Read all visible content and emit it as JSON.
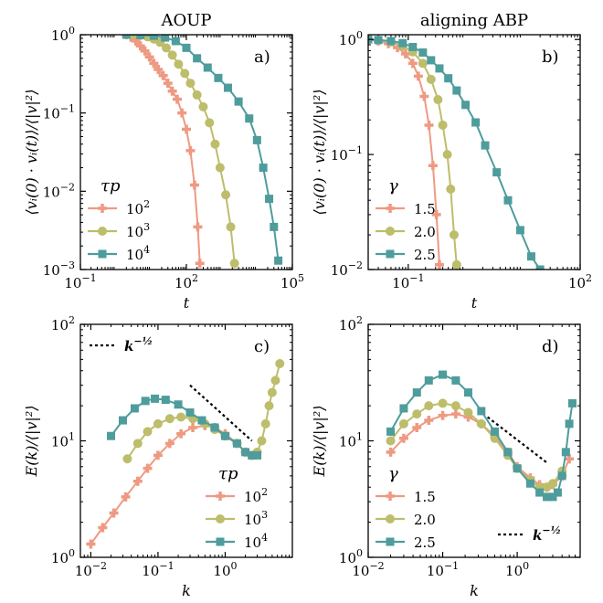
{
  "colors": {
    "s1": "#EE9A82",
    "s2": "#BDBD6B",
    "s3": "#4E9C9C"
  },
  "chart_data": [
    {
      "id": "a",
      "type": "line",
      "title": "AOUP",
      "panel_label": "a)",
      "xlabel": "t",
      "ylabel": "⟨vᵢ(0) · vᵢ(t)⟩/⟨|v|²⟩",
      "xscale": "log",
      "yscale": "log",
      "xlim": [
        0.1,
        100000
      ],
      "ylim": [
        0.001,
        1
      ],
      "xticks": [
        {
          "v": 0.1,
          "t": "10",
          "e": "−1"
        },
        {
          "v": 100,
          "t": "10",
          "e": "2"
        },
        {
          "v": 100000,
          "t": "10",
          "e": "5"
        }
      ],
      "yticks": [
        {
          "v": 0.001,
          "t": "10",
          "e": "−3"
        },
        {
          "v": 0.01,
          "t": "10",
          "e": "−2"
        },
        {
          "v": 0.1,
          "t": "10",
          "e": "−1"
        },
        {
          "v": 1,
          "t": "10",
          "e": "0"
        }
      ],
      "legend": {
        "title": "τp",
        "position": "lower-left"
      },
      "series": [
        {
          "name": "10²",
          "name_base": "10",
          "name_exp": "2",
          "marker": "plus",
          "color_key": "s1",
          "points": [
            [
              2,
              1.0
            ],
            [
              2.7,
              0.93
            ],
            [
              3.7,
              0.83
            ],
            [
              5,
              0.72
            ],
            [
              6.7,
              0.62
            ],
            [
              9,
              0.52
            ],
            [
              12,
              0.43
            ],
            [
              16,
              0.36
            ],
            [
              22,
              0.3
            ],
            [
              30,
              0.24
            ],
            [
              40,
              0.19
            ],
            [
              55,
              0.15
            ],
            [
              75,
              0.1
            ],
            [
              100,
              0.062
            ],
            [
              130,
              0.033
            ],
            [
              170,
              0.012
            ],
            [
              210,
              0.0035
            ],
            [
              240,
              0.0012
            ]
          ]
        },
        {
          "name": "10³",
          "name_base": "10",
          "name_exp": "3",
          "marker": "circle",
          "color_key": "s2",
          "points": [
            [
              3,
              1.0
            ],
            [
              5,
              0.98
            ],
            [
              8,
              0.94
            ],
            [
              12,
              0.88
            ],
            [
              18,
              0.8
            ],
            [
              27,
              0.68
            ],
            [
              40,
              0.55
            ],
            [
              60,
              0.42
            ],
            [
              90,
              0.32
            ],
            [
              130,
              0.24
            ],
            [
              200,
              0.17
            ],
            [
              300,
              0.12
            ],
            [
              450,
              0.075
            ],
            [
              650,
              0.04
            ],
            [
              900,
              0.02
            ],
            [
              1300,
              0.009
            ],
            [
              1800,
              0.0035
            ],
            [
              2300,
              0.0012
            ]
          ]
        },
        {
          "name": "10⁴",
          "name_base": "10",
          "name_exp": "4",
          "marker": "square",
          "color_key": "s3",
          "points": [
            [
              2,
              1.0
            ],
            [
              5,
              0.99
            ],
            [
              12,
              0.97
            ],
            [
              25,
              0.92
            ],
            [
              50,
              0.83
            ],
            [
              100,
              0.68
            ],
            [
              200,
              0.5
            ],
            [
              400,
              0.38
            ],
            [
              800,
              0.28
            ],
            [
              1500,
              0.21
            ],
            [
              3000,
              0.14
            ],
            [
              6000,
              0.085
            ],
            [
              10000,
              0.045
            ],
            [
              15000,
              0.02
            ],
            [
              22000,
              0.008
            ],
            [
              30000,
              0.0035
            ],
            [
              40000,
              0.0013
            ]
          ]
        }
      ]
    },
    {
      "id": "b",
      "type": "line",
      "title": "aligning ABP",
      "panel_label": "b)",
      "xlabel": "t",
      "ylabel": "⟨vᵢ(0) · vᵢ(t)⟩/⟨|v|²⟩",
      "xscale": "log",
      "yscale": "log",
      "xlim": [
        0.02,
        100
      ],
      "ylim": [
        0.01,
        1.1
      ],
      "xticks": [
        {
          "v": 0.1,
          "t": "10",
          "e": "−1"
        },
        {
          "v": 100,
          "t": "10",
          "e": "2"
        }
      ],
      "yticks": [
        {
          "v": 0.01,
          "t": "10",
          "e": "−2"
        },
        {
          "v": 0.1,
          "t": "10",
          "e": "−1"
        },
        {
          "v": 1,
          "t": "10",
          "e": "0"
        }
      ],
      "legend": {
        "title": "γ",
        "position": "lower-left"
      },
      "series": [
        {
          "name": "1.5",
          "marker": "plus",
          "color_key": "s1",
          "points": [
            [
              0.02,
              1.0
            ],
            [
              0.03,
              0.97
            ],
            [
              0.045,
              0.92
            ],
            [
              0.065,
              0.85
            ],
            [
              0.09,
              0.75
            ],
            [
              0.12,
              0.62
            ],
            [
              0.15,
              0.48
            ],
            [
              0.19,
              0.32
            ],
            [
              0.23,
              0.18
            ],
            [
              0.27,
              0.08
            ],
            [
              0.31,
              0.03
            ],
            [
              0.35,
              0.011
            ]
          ]
        },
        {
          "name": "2.0",
          "marker": "circle",
          "color_key": "s2",
          "points": [
            [
              0.02,
              1.0
            ],
            [
              0.03,
              0.98
            ],
            [
              0.05,
              0.95
            ],
            [
              0.08,
              0.88
            ],
            [
              0.12,
              0.78
            ],
            [
              0.18,
              0.62
            ],
            [
              0.25,
              0.45
            ],
            [
              0.33,
              0.3
            ],
            [
              0.4,
              0.18
            ],
            [
              0.48,
              0.1
            ],
            [
              0.55,
              0.05
            ],
            [
              0.63,
              0.02
            ],
            [
              0.7,
              0.011
            ]
          ]
        },
        {
          "name": "2.5",
          "marker": "square",
          "color_key": "s3",
          "points": [
            [
              0.02,
              1.0
            ],
            [
              0.03,
              0.99
            ],
            [
              0.05,
              0.97
            ],
            [
              0.08,
              0.93
            ],
            [
              0.12,
              0.86
            ],
            [
              0.18,
              0.77
            ],
            [
              0.25,
              0.66
            ],
            [
              0.35,
              0.56
            ],
            [
              0.5,
              0.46
            ],
            [
              0.7,
              0.36
            ],
            [
              1.0,
              0.27
            ],
            [
              1.5,
              0.19
            ],
            [
              2.2,
              0.12
            ],
            [
              3.5,
              0.07
            ],
            [
              5.5,
              0.04
            ],
            [
              9,
              0.022
            ],
            [
              14,
              0.013
            ],
            [
              20,
              0.01
            ]
          ]
        }
      ]
    },
    {
      "id": "c",
      "type": "line",
      "panel_label": "c)",
      "xlabel": "k",
      "ylabel": "E(k)/⟨|v|²⟩",
      "xscale": "log",
      "yscale": "log",
      "xlim": [
        0.007,
        10
      ],
      "ylim": [
        1,
        100
      ],
      "xticks": [
        {
          "v": 0.01,
          "t": "10",
          "e": "−2"
        },
        {
          "v": 0.1,
          "t": "10",
          "e": "−1"
        },
        {
          "v": 1,
          "t": "10",
          "e": "0"
        }
      ],
      "yticks": [
        {
          "v": 1,
          "t": "10",
          "e": "0"
        },
        {
          "v": 10,
          "t": "10",
          "e": "1"
        },
        {
          "v": 100,
          "t": "10",
          "e": "2"
        }
      ],
      "legend": {
        "title": "τp",
        "position": "lower-right"
      },
      "reference": {
        "label": "k",
        "label_exp": "−½",
        "position": "top-left",
        "x": [
          0.3,
          2.5
        ],
        "y": [
          30,
          10
        ]
      },
      "series": [
        {
          "name": "10²",
          "name_base": "10",
          "name_exp": "2",
          "marker": "plus",
          "color_key": "s1",
          "points": [
            [
              0.01,
              1.3
            ],
            [
              0.015,
              1.8
            ],
            [
              0.022,
              2.4
            ],
            [
              0.033,
              3.3
            ],
            [
              0.05,
              4.5
            ],
            [
              0.07,
              5.8
            ],
            [
              0.1,
              7.5
            ],
            [
              0.15,
              9.5
            ],
            [
              0.22,
              11.5
            ],
            [
              0.33,
              13
            ],
            [
              0.5,
              13.5
            ],
            [
              0.7,
              13
            ],
            [
              1,
              11.5
            ],
            [
              1.5,
              9.5
            ],
            [
              2,
              8
            ],
            [
              2.5,
              7.5
            ]
          ]
        },
        {
          "name": "10³",
          "name_base": "10",
          "name_exp": "3",
          "marker": "circle",
          "color_key": "s2",
          "points": [
            [
              0.035,
              7
            ],
            [
              0.05,
              9.5
            ],
            [
              0.07,
              12
            ],
            [
              0.1,
              14
            ],
            [
              0.15,
              15.5
            ],
            [
              0.22,
              16
            ],
            [
              0.33,
              15.5
            ],
            [
              0.5,
              14
            ],
            [
              0.7,
              12.5
            ],
            [
              1,
              11
            ],
            [
              1.5,
              9.5
            ],
            [
              2,
              8
            ],
            [
              2.5,
              7.5
            ],
            [
              3,
              8
            ],
            [
              3.5,
              10
            ],
            [
              4,
              14
            ],
            [
              4.5,
              20
            ],
            [
              5,
              26
            ],
            [
              5.6,
              33
            ],
            [
              6.5,
              46
            ]
          ]
        },
        {
          "name": "10⁴",
          "name_base": "10",
          "name_exp": "4",
          "marker": "square",
          "color_key": "s3",
          "points": [
            [
              0.02,
              11
            ],
            [
              0.03,
              15
            ],
            [
              0.045,
              19
            ],
            [
              0.065,
              22
            ],
            [
              0.09,
              23
            ],
            [
              0.13,
              22.5
            ],
            [
              0.2,
              20.5
            ],
            [
              0.3,
              17.5
            ],
            [
              0.45,
              15
            ],
            [
              0.7,
              13
            ],
            [
              1,
              11
            ],
            [
              1.5,
              9.5
            ],
            [
              2,
              8
            ],
            [
              2.5,
              7.5
            ],
            [
              3,
              7.5
            ]
          ]
        }
      ]
    },
    {
      "id": "d",
      "type": "line",
      "panel_label": "d)",
      "xlabel": "k",
      "ylabel": "E(k)/⟨|v|²⟩",
      "xscale": "log",
      "yscale": "log",
      "xlim": [
        0.01,
        7
      ],
      "ylim": [
        1,
        100
      ],
      "xticks": [
        {
          "v": 0.01,
          "t": "10",
          "e": "−2"
        },
        {
          "v": 0.1,
          "t": "10",
          "e": "−1"
        },
        {
          "v": 1,
          "t": "10",
          "e": "0"
        }
      ],
      "yticks": [
        {
          "v": 1,
          "t": "10",
          "e": "0"
        },
        {
          "v": 10,
          "t": "10",
          "e": "1"
        },
        {
          "v": 100,
          "t": "10",
          "e": "2"
        }
      ],
      "legend": {
        "title": "γ",
        "position": "lower-left"
      },
      "reference": {
        "label": "k",
        "label_exp": "−½",
        "position": "lower-right",
        "x": [
          0.4,
          2.5
        ],
        "y": [
          16,
          6.5
        ]
      },
      "series": [
        {
          "name": "1.5",
          "marker": "plus",
          "color_key": "s1",
          "points": [
            [
              0.02,
              8
            ],
            [
              0.03,
              10.5
            ],
            [
              0.045,
              13
            ],
            [
              0.065,
              15
            ],
            [
              0.1,
              16.5
            ],
            [
              0.15,
              17
            ],
            [
              0.22,
              16
            ],
            [
              0.33,
              14
            ],
            [
              0.5,
              11
            ],
            [
              0.75,
              8
            ],
            [
              1,
              6
            ],
            [
              1.5,
              4.8
            ],
            [
              2,
              4.2
            ],
            [
              2.5,
              4
            ],
            [
              3,
              4.2
            ],
            [
              4,
              5
            ],
            [
              5,
              7
            ]
          ]
        },
        {
          "name": "2.0",
          "marker": "circle",
          "color_key": "s2",
          "points": [
            [
              0.02,
              10
            ],
            [
              0.03,
              14
            ],
            [
              0.045,
              17
            ],
            [
              0.065,
              20
            ],
            [
              0.1,
              21
            ],
            [
              0.15,
              20
            ],
            [
              0.22,
              17.5
            ],
            [
              0.33,
              14
            ],
            [
              0.5,
              10.5
            ],
            [
              0.75,
              7.5
            ],
            [
              1,
              5.8
            ],
            [
              1.5,
              4.6
            ],
            [
              2,
              4
            ],
            [
              2.5,
              4
            ],
            [
              3,
              4.3
            ],
            [
              4,
              5.5
            ]
          ]
        },
        {
          "name": "2.5",
          "marker": "square",
          "color_key": "s3",
          "points": [
            [
              0.02,
              12
            ],
            [
              0.03,
              19
            ],
            [
              0.045,
              26
            ],
            [
              0.065,
              33
            ],
            [
              0.1,
              37
            ],
            [
              0.15,
              33
            ],
            [
              0.22,
              26
            ],
            [
              0.33,
              18
            ],
            [
              0.5,
              12
            ],
            [
              0.75,
              8
            ],
            [
              1,
              5.8
            ],
            [
              1.5,
              4.3
            ],
            [
              2,
              3.6
            ],
            [
              2.5,
              3.3
            ],
            [
              3,
              3.3
            ],
            [
              3.5,
              3.6
            ],
            [
              4,
              5
            ],
            [
              4.5,
              8
            ],
            [
              5,
              14
            ],
            [
              5.5,
              21
            ]
          ]
        }
      ]
    }
  ]
}
